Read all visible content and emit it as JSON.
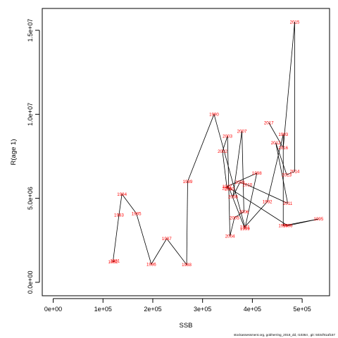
{
  "chart_data": {
    "type": "line",
    "title": "",
    "xlabel": "SSB",
    "ylabel": "R(age 1)",
    "xlim": [
      -22000,
      555000
    ],
    "ylim": [
      -800000,
      16300000
    ],
    "x_ticks": [
      {
        "value": 0,
        "label": "0e+00"
      },
      {
        "value": 100000,
        "label": "1e+05"
      },
      {
        "value": 200000,
        "label": "2e+05"
      },
      {
        "value": 300000,
        "label": "3e+05"
      },
      {
        "value": 400000,
        "label": "4e+05"
      },
      {
        "value": 500000,
        "label": "5e+05"
      }
    ],
    "y_ticks": [
      {
        "value": 0,
        "label": "0.0e+00"
      },
      {
        "value": 5000000,
        "label": "5.0e+06"
      },
      {
        "value": 10000000,
        "label": "1.0e+07"
      },
      {
        "value": 15000000,
        "label": "1.5e+07"
      }
    ],
    "grid": false,
    "legend": "none",
    "line_color": "#000000",
    "label_color": "#ff0000",
    "points": [
      {
        "year": "1981",
        "x": 124000,
        "y": 1280000
      },
      {
        "year": "1982",
        "x": 120000,
        "y": 1220000
      },
      {
        "year": "1983",
        "x": 132000,
        "y": 4000000
      },
      {
        "year": "1984",
        "x": 138000,
        "y": 5250000
      },
      {
        "year": "1985",
        "x": 167000,
        "y": 4100000
      },
      {
        "year": "1986",
        "x": 197000,
        "y": 1080000
      },
      {
        "year": "1987",
        "x": 228000,
        "y": 2600000
      },
      {
        "year": "1988",
        "x": 268000,
        "y": 1050000
      },
      {
        "year": "1989",
        "x": 270000,
        "y": 6000000
      },
      {
        "year": "1990",
        "x": 323000,
        "y": 10000000
      },
      {
        "year": "1991",
        "x": 385000,
        "y": 3300000
      },
      {
        "year": "1992",
        "x": 430000,
        "y": 4800000
      },
      {
        "year": "1993",
        "x": 462000,
        "y": 8800000
      },
      {
        "year": "1994",
        "x": 462000,
        "y": 3370000
      },
      {
        "year": "1995",
        "x": 533000,
        "y": 3770000
      },
      {
        "year": "1996",
        "x": 471000,
        "y": 3370000
      },
      {
        "year": "1997",
        "x": 349000,
        "y": 5700000
      },
      {
        "year": "1998",
        "x": 409000,
        "y": 6500000
      },
      {
        "year": "1999",
        "x": 385000,
        "y": 3200000
      },
      {
        "year": "2000",
        "x": 354000,
        "y": 5550000
      },
      {
        "year": "2001",
        "x": 349000,
        "y": 5600000
      },
      {
        "year": "2002",
        "x": 340000,
        "y": 7800000
      },
      {
        "year": "2003",
        "x": 350000,
        "y": 8700000
      },
      {
        "year": "2004",
        "x": 355000,
        "y": 2750000
      },
      {
        "year": "2005",
        "x": 364000,
        "y": 3850000
      },
      {
        "year": "2006",
        "x": 383000,
        "y": 4200000
      },
      {
        "year": "2007",
        "x": 379000,
        "y": 9000000
      },
      {
        "year": "2008",
        "x": 361000,
        "y": 5100000
      },
      {
        "year": "2009",
        "x": 375000,
        "y": 5950000
      },
      {
        "year": "2010",
        "x": 390000,
        "y": 5800000
      },
      {
        "year": "2011",
        "x": 471000,
        "y": 4700000
      },
      {
        "year": "2012",
        "x": 447000,
        "y": 8300000
      },
      {
        "year": "2013",
        "x": 469000,
        "y": 6400000
      },
      {
        "year": "2014",
        "x": 485000,
        "y": 6600000
      },
      {
        "year": "2015",
        "x": 485000,
        "y": 15500000
      },
      {
        "year": "2016",
        "x": 462000,
        "y": 8000000
      },
      {
        "year": "2017",
        "x": 433000,
        "y": 9500000
      }
    ]
  },
  "footer_text": "stockassessment.org, gobherring_2018_dd, r10364 , git: 503cf91af157"
}
